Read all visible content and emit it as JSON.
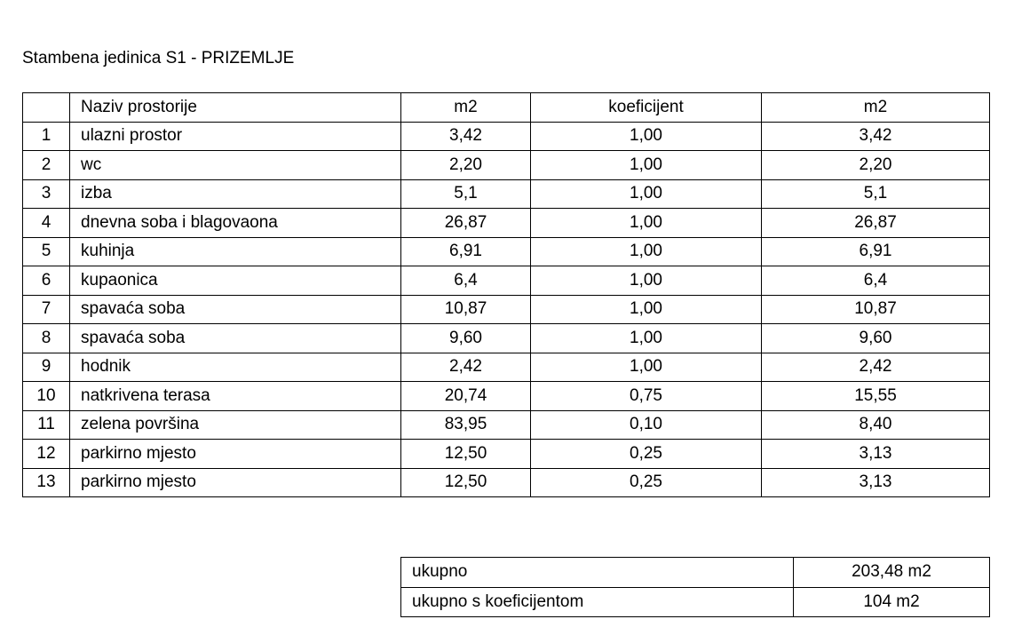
{
  "title": "Stambena jedinica S1 - PRIZEMLJE",
  "table": {
    "headers": [
      "",
      "Naziv prostorije",
      "m2",
      "koeficijent",
      "m2"
    ],
    "rows": [
      [
        "1",
        "ulazni prostor",
        "3,42",
        "1,00",
        "3,42"
      ],
      [
        "2",
        "wc",
        "2,20",
        "1,00",
        "2,20"
      ],
      [
        "3",
        "izba",
        "5,1",
        "1,00",
        "5,1"
      ],
      [
        "4",
        "dnevna soba i blagovaona",
        "26,87",
        "1,00",
        "26,87"
      ],
      [
        "5",
        "kuhinja",
        "6,91",
        "1,00",
        "6,91"
      ],
      [
        "6",
        "kupaonica",
        "6,4",
        "1,00",
        "6,4"
      ],
      [
        "7",
        "spavaća soba",
        "10,87",
        "1,00",
        "10,87"
      ],
      [
        "8",
        "spavaća soba",
        "9,60",
        "1,00",
        "9,60"
      ],
      [
        "9",
        "hodnik",
        "2,42",
        "1,00",
        "2,42"
      ],
      [
        "10",
        "natkrivena terasa",
        "20,74",
        "0,75",
        "15,55"
      ],
      [
        "11",
        "zelena površina",
        "83,95",
        "0,10",
        "8,40"
      ],
      [
        "12",
        "parkirno mjesto",
        "12,50",
        "0,25",
        "3,13"
      ],
      [
        "13",
        "parkirno mjesto",
        "12,50",
        "0,25",
        "3,13"
      ]
    ]
  },
  "summary": {
    "total_label": "ukupno",
    "total_value": "203,48 m2",
    "weighted_label": "ukupno s koeficijentom",
    "weighted_value": "104 m2"
  }
}
